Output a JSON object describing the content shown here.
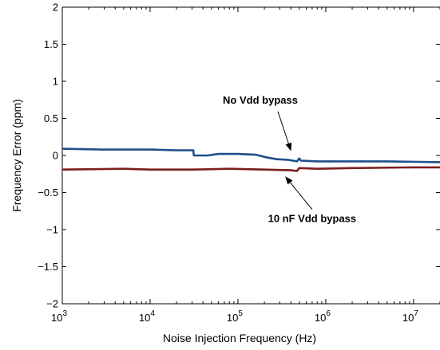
{
  "chart_data": {
    "type": "line",
    "title": "",
    "xlabel": "Noise Injection Frequency (Hz)",
    "ylabel": "Frequency Error (ppm)",
    "xscale": "log",
    "xlim": [
      1000,
      20000000
    ],
    "ylim": [
      -2,
      2
    ],
    "grid": false,
    "x_ticks": [
      {
        "value": 1000,
        "base": "10",
        "exp": "3"
      },
      {
        "value": 10000,
        "base": "10",
        "exp": "4"
      },
      {
        "value": 100000,
        "base": "10",
        "exp": "5"
      },
      {
        "value": 1000000,
        "base": "10",
        "exp": "6"
      },
      {
        "value": 10000000,
        "base": "10",
        "exp": "7"
      }
    ],
    "y_ticks": [
      {
        "value": 2,
        "label": "2"
      },
      {
        "value": 1.5,
        "label": "1.5"
      },
      {
        "value": 1,
        "label": "1"
      },
      {
        "value": 0.5,
        "label": "0.5"
      },
      {
        "value": 0,
        "label": "0"
      },
      {
        "value": -0.5,
        "label": "−0.5"
      },
      {
        "value": -1,
        "label": "−1"
      },
      {
        "value": -1.5,
        "label": "−1.5"
      },
      {
        "value": -2,
        "label": "−2"
      }
    ],
    "series": [
      {
        "color": "#1f4e8c",
        "points": [
          [
            1000,
            0.09
          ],
          [
            3000,
            0.08
          ],
          [
            10000,
            0.08
          ],
          [
            20000,
            0.07
          ],
          [
            31000,
            0.07
          ],
          [
            31500,
            0.0
          ],
          [
            45000,
            0.0
          ],
          [
            60000,
            0.02
          ],
          [
            100000,
            0.02
          ],
          [
            160000,
            0.01
          ],
          [
            220000,
            -0.03
          ],
          [
            280000,
            -0.05
          ],
          [
            380000,
            -0.06
          ],
          [
            470000,
            -0.08
          ],
          [
            500000,
            -0.04
          ],
          [
            520000,
            -0.07
          ],
          [
            800000,
            -0.08
          ],
          [
            1500000,
            -0.08
          ],
          [
            5000000,
            -0.08
          ],
          [
            20000000,
            -0.09
          ]
        ]
      },
      {
        "color": "#7b1f1f",
        "points": [
          [
            1000,
            -0.19
          ],
          [
            5000,
            -0.18
          ],
          [
            10000,
            -0.19
          ],
          [
            30000,
            -0.19
          ],
          [
            80000,
            -0.18
          ],
          [
            200000,
            -0.19
          ],
          [
            400000,
            -0.2
          ],
          [
            470000,
            -0.21
          ],
          [
            500000,
            -0.17
          ],
          [
            800000,
            -0.18
          ],
          [
            2000000,
            -0.17
          ],
          [
            10000000,
            -0.16
          ],
          [
            20000000,
            -0.16
          ]
        ]
      }
    ],
    "annotations": [
      {
        "text": "No Vdd bypass",
        "x": 180000,
        "y": 0.7,
        "arrow_to": [
          400000,
          0.07
        ]
      },
      {
        "text": "10 nF Vdd bypass",
        "x": 700000,
        "y": -0.9,
        "arrow_to": [
          350000,
          -0.29
        ]
      }
    ]
  }
}
